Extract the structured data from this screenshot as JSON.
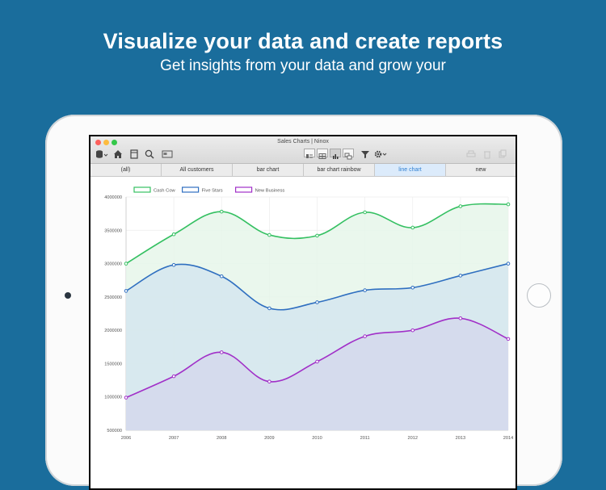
{
  "promo": {
    "headline": "Visualize your data and create reports",
    "subline": "Get insights from your data and grow your"
  },
  "window": {
    "title": "Sales Charts | Ninox"
  },
  "toolbar": {
    "left_icons": [
      "database-icon",
      "home-icon",
      "book-icon",
      "search-icon",
      "panel-icon"
    ],
    "view_icons": [
      "form-view-icon",
      "table-view-icon",
      "chart-view-icon",
      "multi-view-icon"
    ],
    "right_icons": [
      "filter-icon",
      "gear-icon",
      "print-icon",
      "trash-icon",
      "duplicate-icon"
    ]
  },
  "tabs": [
    {
      "label": "(all)",
      "active": false
    },
    {
      "label": "All customers",
      "active": false
    },
    {
      "label": "bar chart",
      "active": false
    },
    {
      "label": "bar chart rainbow",
      "active": false
    },
    {
      "label": "line chart",
      "active": true
    },
    {
      "label": "new",
      "active": false
    }
  ],
  "colors": {
    "background": "#1a6d9c",
    "active_tab": "#2f7fd1"
  },
  "chart_data": {
    "type": "area",
    "x": [
      "2006",
      "2007",
      "2008",
      "2009",
      "2010",
      "2011",
      "2012",
      "2013",
      "2014"
    ],
    "series": [
      {
        "name": "Cash Cow",
        "color": "#35c062",
        "fill": "#e6f6ea",
        "values": [
          3000000,
          3440000,
          3780000,
          3430000,
          3420000,
          3770000,
          3540000,
          3860000,
          3890000
        ]
      },
      {
        "name": "Five Stars",
        "color": "#2f6fc0",
        "fill": "#d5e6ee",
        "values": [
          2590000,
          2980000,
          2810000,
          2330000,
          2420000,
          2600000,
          2640000,
          2820000,
          3000000
        ]
      },
      {
        "name": "New Business",
        "color": "#a130c8",
        "fill": "#d5d8ec",
        "values": [
          990000,
          1310000,
          1670000,
          1230000,
          1530000,
          1910000,
          2000000,
          2180000,
          1870000
        ]
      }
    ],
    "yticks": [
      "4000000",
      "3500000",
      "3000000",
      "2500000",
      "2000000",
      "1500000",
      "1000000",
      "500000"
    ],
    "ylim": [
      500000,
      4000000
    ],
    "legend": "top-left",
    "grid": true
  }
}
